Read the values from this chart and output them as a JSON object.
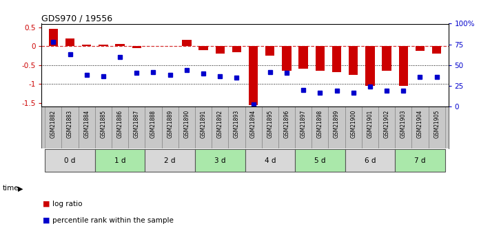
{
  "title": "GDS970 / 19556",
  "samples": [
    "GSM21882",
    "GSM21883",
    "GSM21884",
    "GSM21885",
    "GSM21886",
    "GSM21887",
    "GSM21888",
    "GSM21889",
    "GSM21890",
    "GSM21891",
    "GSM21892",
    "GSM21893",
    "GSM21894",
    "GSM21895",
    "GSM21896",
    "GSM21897",
    "GSM21898",
    "GSM21899",
    "GSM21900",
    "GSM21901",
    "GSM21902",
    "GSM21903",
    "GSM21904",
    "GSM21905"
  ],
  "log_ratio": [
    0.47,
    0.21,
    0.05,
    0.04,
    0.06,
    -0.05,
    0.0,
    0.0,
    0.17,
    -0.1,
    -0.2,
    -0.15,
    -1.55,
    -0.25,
    -0.65,
    -0.6,
    -0.65,
    -0.68,
    -0.75,
    -1.05,
    -0.65,
    -1.05,
    -0.12,
    -0.2
  ],
  "percentile_rank": [
    78,
    63,
    38,
    37,
    60,
    41,
    42,
    38,
    44,
    40,
    37,
    35,
    3,
    42,
    41,
    20,
    17,
    19,
    17,
    24,
    19,
    19,
    36,
    36
  ],
  "time_groups": [
    [
      "0 d",
      0,
      3
    ],
    [
      "1 d",
      3,
      6
    ],
    [
      "2 d",
      6,
      9
    ],
    [
      "3 d",
      9,
      12
    ],
    [
      "4 d",
      12,
      15
    ],
    [
      "5 d",
      15,
      18
    ],
    [
      "6 d",
      18,
      21
    ],
    [
      "7 d",
      21,
      24
    ]
  ],
  "bar_color": "#cc0000",
  "dot_color": "#0000cc",
  "ylim_left": [
    -1.6,
    0.6
  ],
  "ylim_right": [
    0,
    100
  ],
  "right_ticks": [
    0,
    25,
    50,
    75,
    100
  ],
  "right_tick_labels": [
    "0",
    "25",
    "50",
    "75",
    "100%"
  ],
  "left_ticks": [
    -1.5,
    -1.0,
    -0.5,
    0,
    0.5
  ],
  "left_tick_labels": [
    "-1.5",
    "-1",
    "-0.5",
    "0",
    "0.5"
  ],
  "dotted_lines": [
    -0.5,
    -1.0
  ],
  "bg_color": "#ffffff",
  "plot_bg": "#ffffff",
  "group_colors": [
    "#d8d8d8",
    "#aae8aa"
  ],
  "label_bg": "#c8c8c8",
  "group_border_color": "#555555",
  "cell_border_color": "#888888"
}
